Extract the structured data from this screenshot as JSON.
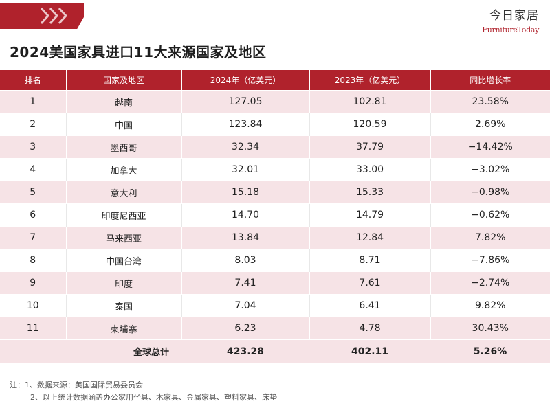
{
  "brand": {
    "cn": "今日家居",
    "en": "FurnitureToday",
    "accent": "#b0222c"
  },
  "title": "2024美国家具进口11大来源国家及地区",
  "table": {
    "headers": [
      "排名",
      "国家及地区",
      "2024年（亿美元）",
      "2023年（亿美元）",
      "同比增长率"
    ],
    "rows": [
      [
        "1",
        "越南",
        "127.05",
        "102.81",
        "23.58%"
      ],
      [
        "2",
        "中国",
        "123.84",
        "120.59",
        "2.69%"
      ],
      [
        "3",
        "墨西哥",
        "32.34",
        "37.79",
        "−14.42%"
      ],
      [
        "4",
        "加拿大",
        "32.01",
        "33.00",
        "−3.02%"
      ],
      [
        "5",
        "意大利",
        "15.18",
        "15.33",
        "−0.98%"
      ],
      [
        "6",
        "印度尼西亚",
        "14.70",
        "14.79",
        "−0.62%"
      ],
      [
        "7",
        "马来西亚",
        "13.84",
        "12.84",
        "7.82%"
      ],
      [
        "8",
        "中国台湾",
        "8.03",
        "8.71",
        "−7.86%"
      ],
      [
        "9",
        "印度",
        "7.41",
        "7.61",
        "−2.74%"
      ],
      [
        "10",
        "泰国",
        "7.04",
        "6.41",
        "9.82%"
      ],
      [
        "11",
        "柬埔寨",
        "6.23",
        "4.78",
        "30.43%"
      ]
    ],
    "total": {
      "label": "全球总计",
      "v2024": "423.28",
      "v2023": "402.11",
      "growth": "5.26%"
    }
  },
  "notes": {
    "line1": "注：1、数据来源：美国国际贸易委员会",
    "line2": "2、以上统计数据涵盖办公家用坐具、木家具、金属家具、塑料家具、床垫"
  }
}
